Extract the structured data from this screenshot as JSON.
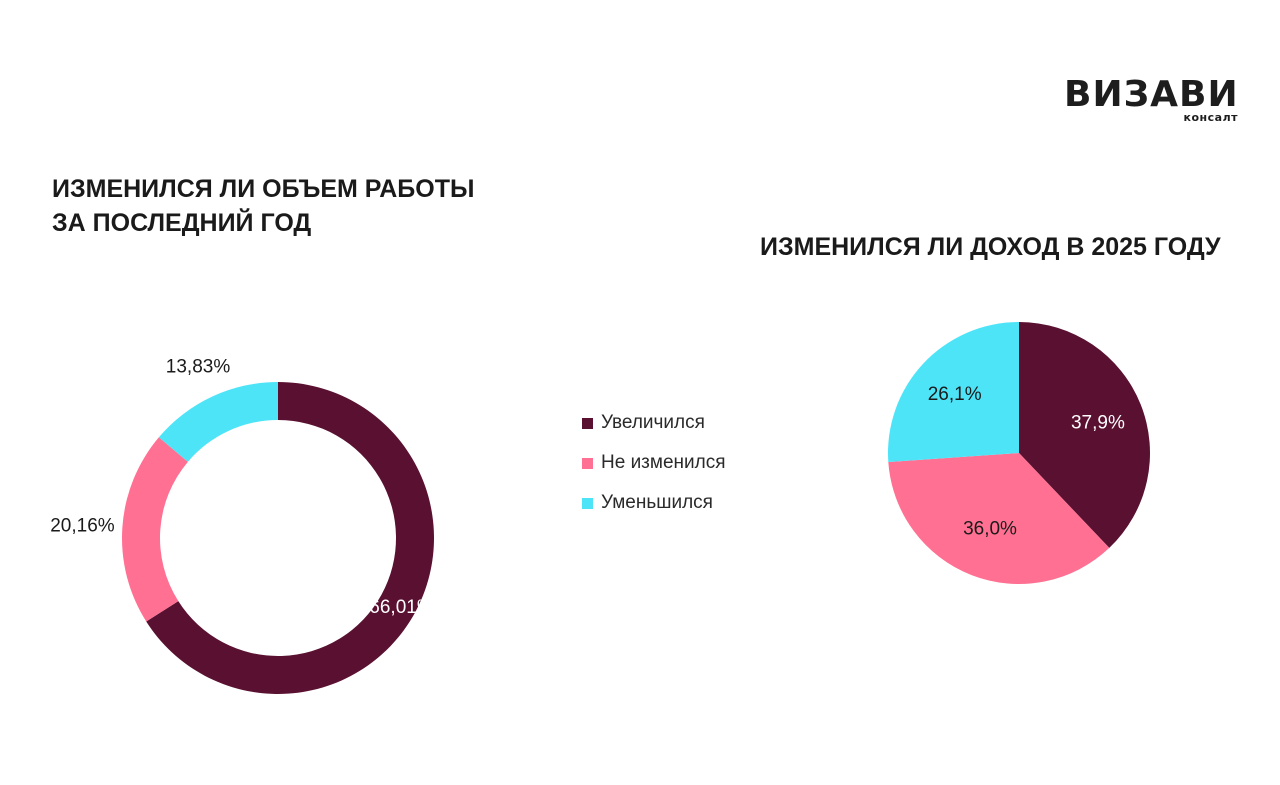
{
  "logo": {
    "word": "ВИЗАВИ",
    "sub": "консалт"
  },
  "colors": {
    "increased": "#5a1131",
    "unchanged": "#ff7092",
    "decreased": "#4ee4f8"
  },
  "chart_data": [
    {
      "type": "pie",
      "variant": "donut",
      "title": "ИЗМЕНИЛСЯ ЛИ ОБЪЕМ РАБОТЫ\nЗА ПОСЛЕДНИЙ ГОД",
      "categories": [
        "Увеличился",
        "Не изменился",
        "Уменьшился"
      ],
      "values": [
        66.01,
        20.16,
        13.83
      ],
      "labels": [
        "66,01%",
        "20,16%",
        "13,83%"
      ],
      "legend": "center"
    },
    {
      "type": "pie",
      "title": "ИЗМЕНИЛСЯ ЛИ ДОХОД В 2025 ГОДУ",
      "categories": [
        "Увеличился",
        "Не изменился",
        "Уменьшился"
      ],
      "values": [
        37.9,
        36.0,
        26.1
      ],
      "labels": [
        "37,9%",
        "36,0%",
        "26,1%"
      ]
    }
  ],
  "legend": {
    "items": [
      {
        "label": "Увеличился",
        "color": "#5a1131"
      },
      {
        "label": "Не изменился",
        "color": "#ff7092"
      },
      {
        "label": "Уменьшился",
        "color": "#4ee4f8"
      }
    ]
  }
}
